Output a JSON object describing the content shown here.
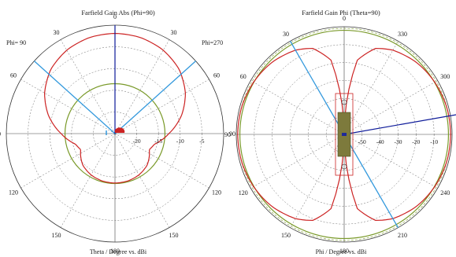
{
  "charts": [
    {
      "title": "Farfield Gain Abs (Phi=90)",
      "xlabel": "Theta / Degree vs. dBi",
      "corner_left": "Phi= 90",
      "corner_right": "Phi=270",
      "angle_labels": [
        "0",
        "30",
        "60",
        "90",
        "120",
        "150",
        "180",
        "150",
        "120",
        "90",
        "60",
        "30"
      ],
      "radial_labels": [
        "-20",
        "-15",
        "-10",
        "-5"
      ]
    },
    {
      "title": "Farfield Gain Phi (Theta=90)",
      "xlabel": "Phi / Degree vs. dBi",
      "angle_labels": [
        "0",
        "330",
        "300",
        "270",
        "240",
        "210",
        "180",
        "150",
        "120",
        "90",
        "60",
        "30"
      ],
      "radial_labels": [
        "-50",
        "-40",
        "-30",
        "-20",
        "-10"
      ]
    }
  ],
  "colors": {
    "pattern": "#cc2222",
    "reference_circle": "#7a9a2a",
    "beam_direction": "#3399dd",
    "main_lobe": "#0d1a99",
    "grid": "#666666",
    "antenna_body": "#7d7a3c"
  },
  "chart_data": [
    {
      "type": "polar-line",
      "title": "Farfield Gain Abs (Phi=90)",
      "angle_unit": "degree",
      "angle_axis": "Theta",
      "angle_labels": [
        "0",
        "30",
        "60",
        "90",
        "120",
        "150",
        "180"
      ],
      "radial_unit": "dBi",
      "radial_ticks": [
        -20,
        -15,
        -10,
        -5
      ],
      "radial_range": [
        -25,
        0
      ],
      "series": [
        {
          "role": "pattern",
          "theta": [
            0,
            15,
            30,
            45,
            60,
            75,
            90,
            105,
            115,
            125,
            135,
            150,
            165,
            180
          ],
          "gain": [
            -1.9,
            -2.1,
            -2.8,
            -4.1,
            -6.3,
            -9.2,
            -12.6,
            -15.6,
            -16.3,
            -15.4,
            -14.6,
            -14.0,
            -13.7,
            -13.6
          ]
        },
        {
          "role": "reference_circle",
          "gain": -13.5
        }
      ],
      "main_lobe_direction_deg": 0,
      "beam_lines_deg": [
        -48,
        48
      ]
    },
    {
      "type": "polar-line",
      "title": "Farfield Gain Phi (Theta=90)",
      "angle_unit": "degree",
      "angle_axis": "Phi",
      "angle_labels": [
        "0",
        "30",
        "60",
        "90",
        "120",
        "150",
        "180",
        "210",
        "240",
        "270",
        "300",
        "330"
      ],
      "radial_unit": "dBi",
      "radial_ticks": [
        -50,
        -40,
        -30,
        -20,
        -10
      ],
      "radial_range": [
        -60,
        0
      ],
      "series": [
        {
          "role": "pattern",
          "phi": [
            0,
            10,
            20,
            30,
            45,
            60,
            75,
            90,
            105,
            120,
            135,
            150,
            160,
            170,
            180
          ],
          "gain": [
            -60,
            -18,
            -9,
            -5.8,
            -3.2,
            -1.8,
            -1.0,
            -0.8,
            -1.0,
            -1.8,
            -3.2,
            -5.8,
            -9,
            -18,
            -60
          ]
        },
        {
          "role": "reference_circle",
          "gain": -2
        }
      ],
      "main_lobe_direction_deg": 280,
      "beam_lines_deg": [
        30,
        210
      ]
    }
  ]
}
